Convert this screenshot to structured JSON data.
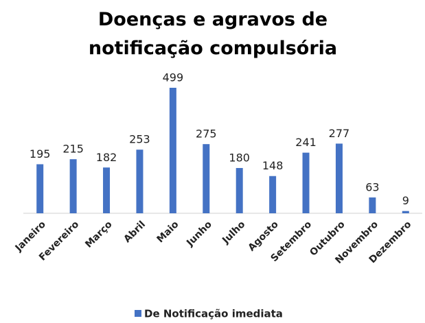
{
  "chart_data": {
    "type": "bar",
    "title": "Doenças e agravos de notificação compulsória",
    "categories": [
      "Janeiro",
      "Fevereiro",
      "Março",
      "Abril",
      "Maio",
      "Junho",
      "Julho",
      "Agosto",
      "Setembro",
      "Outubro",
      "Novembro",
      "Dezembro"
    ],
    "series": [
      {
        "name": "De Notificação imediata",
        "color": "#4472c4",
        "values": [
          195,
          215,
          182,
          253,
          499,
          275,
          180,
          148,
          241,
          277,
          63,
          9
        ]
      }
    ],
    "legend": "bottom"
  }
}
